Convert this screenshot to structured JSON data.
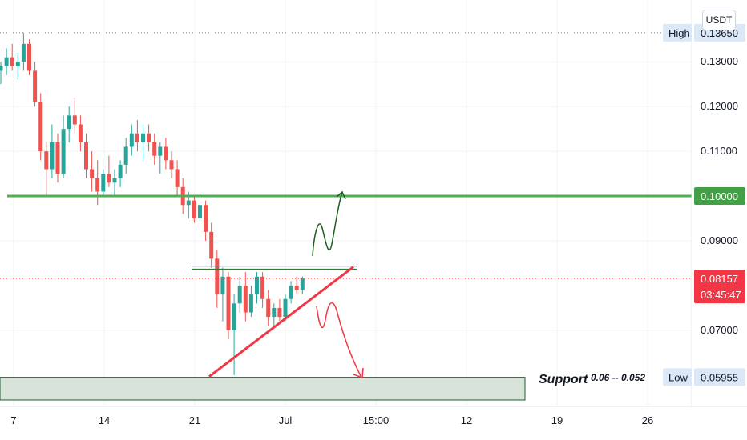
{
  "chart_data": {
    "type": "candlestick",
    "unit": "USDT",
    "y_range": [
      0.053,
      0.1438
    ],
    "y_ticks": [
      0.13,
      0.12,
      0.11,
      0.09,
      0.07
    ],
    "y_tick_labels": [
      "0.13000",
      "0.12000",
      "0.11000",
      "0.09000",
      "0.07000"
    ],
    "x_ticks": [
      {
        "label": "7",
        "day": 7
      },
      {
        "label": "14",
        "day": 14
      },
      {
        "label": "21",
        "day": 21
      },
      {
        "label": "Jul",
        "day": 28
      },
      {
        "label": "15:00",
        "day": 35
      },
      {
        "label": "12",
        "day": 42
      },
      {
        "label": "19",
        "day": 49
      },
      {
        "label": "26",
        "day": 56
      }
    ],
    "price_markers": {
      "high": {
        "label": "High",
        "value_text": "0.13650",
        "value": 0.1365
      },
      "low": {
        "label": "Low",
        "value_text": "0.05955",
        "value": 0.05955
      },
      "current": {
        "value_text": "0.08157",
        "value": 0.08157,
        "countdown": "03:45:47"
      },
      "level": {
        "value_text": "0.10000",
        "value": 0.1
      }
    },
    "annotations": {
      "resistance_line": 0.1,
      "neckline": 0.084,
      "support_zone": [
        0.052,
        0.0595
      ],
      "support_title": "Support",
      "support_range": "0.06 -- 0.052"
    },
    "candles": [
      [
        0.128,
        0.13,
        0.125,
        0.129
      ],
      [
        0.129,
        0.133,
        0.127,
        0.131
      ],
      [
        0.131,
        0.134,
        0.128,
        0.129
      ],
      [
        0.129,
        0.132,
        0.126,
        0.13
      ],
      [
        0.13,
        0.1365,
        0.128,
        0.134
      ],
      [
        0.134,
        0.135,
        0.127,
        0.128
      ],
      [
        0.128,
        0.13,
        0.12,
        0.121
      ],
      [
        0.121,
        0.123,
        0.108,
        0.11
      ],
      [
        0.11,
        0.112,
        0.1,
        0.106
      ],
      [
        0.106,
        0.116,
        0.104,
        0.112
      ],
      [
        0.112,
        0.114,
        0.103,
        0.105
      ],
      [
        0.105,
        0.118,
        0.104,
        0.115
      ],
      [
        0.115,
        0.12,
        0.112,
        0.118
      ],
      [
        0.118,
        0.122,
        0.114,
        0.116
      ],
      [
        0.116,
        0.118,
        0.11,
        0.112
      ],
      [
        0.112,
        0.114,
        0.104,
        0.106
      ],
      [
        0.106,
        0.11,
        0.101,
        0.104
      ],
      [
        0.104,
        0.108,
        0.098,
        0.101
      ],
      [
        0.101,
        0.106,
        0.1,
        0.105
      ],
      [
        0.105,
        0.109,
        0.102,
        0.103
      ],
      [
        0.103,
        0.106,
        0.1,
        0.104
      ],
      [
        0.104,
        0.108,
        0.102,
        0.107
      ],
      [
        0.107,
        0.113,
        0.105,
        0.111
      ],
      [
        0.111,
        0.116,
        0.109,
        0.114
      ],
      [
        0.114,
        0.117,
        0.11,
        0.112
      ],
      [
        0.112,
        0.116,
        0.108,
        0.114
      ],
      [
        0.114,
        0.116,
        0.11,
        0.112
      ],
      [
        0.112,
        0.114,
        0.107,
        0.109
      ],
      [
        0.109,
        0.112,
        0.105,
        0.111
      ],
      [
        0.111,
        0.113,
        0.106,
        0.108
      ],
      [
        0.108,
        0.11,
        0.104,
        0.106
      ],
      [
        0.106,
        0.108,
        0.1,
        0.102
      ],
      [
        0.102,
        0.104,
        0.096,
        0.098
      ],
      [
        0.098,
        0.101,
        0.095,
        0.099
      ],
      [
        0.099,
        0.1,
        0.094,
        0.095
      ],
      [
        0.095,
        0.1,
        0.094,
        0.098
      ],
      [
        0.098,
        0.099,
        0.09,
        0.092
      ],
      [
        0.092,
        0.094,
        0.084,
        0.086
      ],
      [
        0.086,
        0.088,
        0.075,
        0.078
      ],
      [
        0.078,
        0.084,
        0.072,
        0.082
      ],
      [
        0.082,
        0.083,
        0.068,
        0.07
      ],
      [
        0.07,
        0.078,
        0.06,
        0.076
      ],
      [
        0.076,
        0.082,
        0.074,
        0.08
      ],
      [
        0.08,
        0.083,
        0.072,
        0.074
      ],
      [
        0.074,
        0.08,
        0.073,
        0.078
      ],
      [
        0.078,
        0.083,
        0.076,
        0.082
      ],
      [
        0.082,
        0.083,
        0.075,
        0.077
      ],
      [
        0.077,
        0.079,
        0.071,
        0.073
      ],
      [
        0.073,
        0.076,
        0.071,
        0.075
      ],
      [
        0.075,
        0.077,
        0.072,
        0.073
      ],
      [
        0.073,
        0.078,
        0.072,
        0.077
      ],
      [
        0.077,
        0.081,
        0.076,
        0.08
      ],
      [
        0.08,
        0.082,
        0.078,
        0.079
      ],
      [
        0.079,
        0.082,
        0.078,
        0.0816
      ]
    ]
  }
}
